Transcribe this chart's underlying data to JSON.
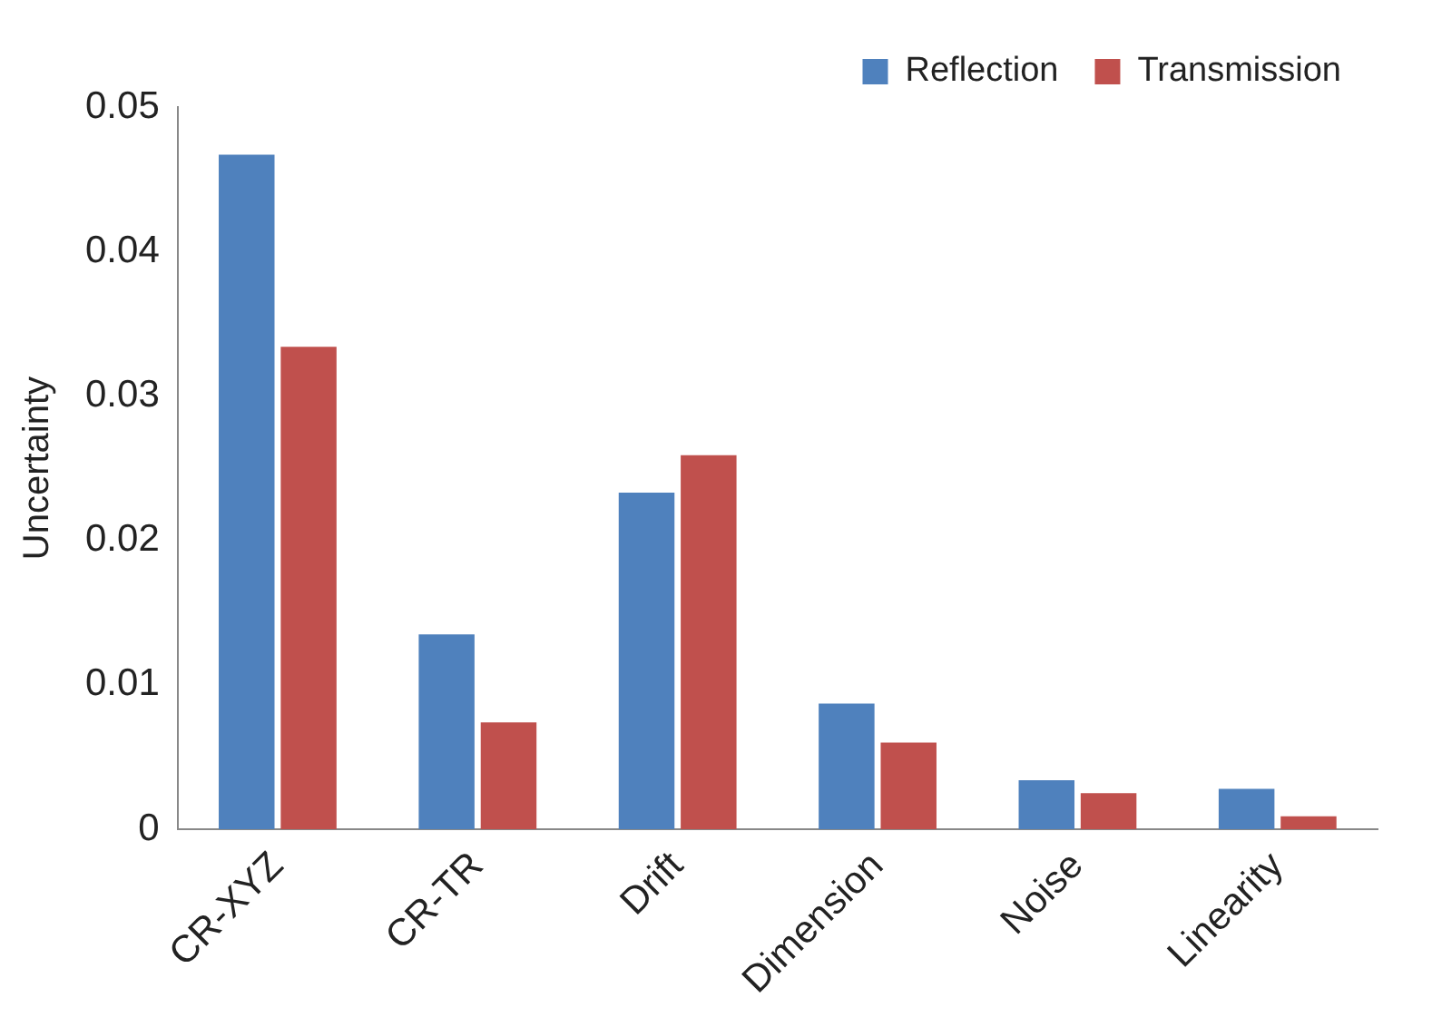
{
  "chart_data": {
    "type": "bar",
    "ylabel": "Uncertainty",
    "categories": [
      "CR-XYZ",
      "CR-TR",
      "Drift",
      "Dimension",
      "Noise",
      "Linearity"
    ],
    "series": [
      {
        "name": "Reflection",
        "color": "#4f81bd",
        "values": [
          0.0467,
          0.0135,
          0.0233,
          0.0087,
          0.0034,
          0.0028
        ]
      },
      {
        "name": "Transmission",
        "color": "#c0504d",
        "values": [
          0.0334,
          0.0074,
          0.0259,
          0.006,
          0.0025,
          0.0009
        ]
      }
    ],
    "ylim": [
      0,
      0.05
    ],
    "yticks": [
      0,
      0.01,
      0.02,
      0.03,
      0.04,
      0.05
    ],
    "grid": false,
    "legend": "top right"
  }
}
